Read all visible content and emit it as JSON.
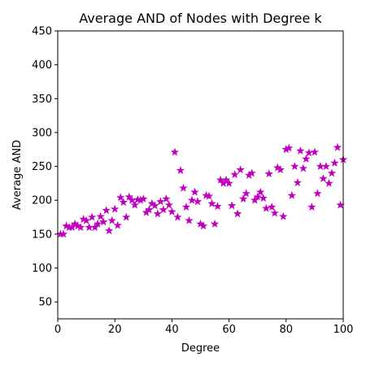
{
  "chart_data": {
    "type": "scatter",
    "title": "Average AND of Nodes with Degree k",
    "xlabel": "Degree",
    "ylabel": "Average AND",
    "xlim": [
      0,
      100
    ],
    "ylim": [
      25,
      450
    ],
    "xticks": [
      0,
      20,
      40,
      60,
      80,
      100
    ],
    "yticks": [
      50,
      100,
      150,
      200,
      250,
      300,
      350,
      400,
      450
    ],
    "grid": false,
    "marker": "star",
    "color": "#bf00bf",
    "series": [
      {
        "x": [
          1,
          2,
          3,
          4,
          5,
          6,
          7,
          8,
          9,
          10,
          11,
          12,
          13,
          14,
          15,
          16,
          17,
          18,
          19,
          20,
          21,
          22,
          23,
          24,
          25,
          26,
          27,
          28,
          29,
          30,
          31,
          32,
          33,
          34,
          35,
          36,
          37,
          38,
          39,
          40,
          41,
          42,
          43,
          44,
          45,
          46,
          47,
          48,
          49,
          50,
          51,
          52,
          53,
          54,
          55,
          56,
          57,
          58,
          59,
          60,
          61,
          62,
          63,
          64,
          65,
          66,
          67,
          68,
          69,
          70,
          71,
          72,
          73,
          74,
          75,
          76,
          77,
          78,
          79,
          80,
          81,
          82,
          83,
          84,
          85,
          86,
          87,
          88,
          89,
          90,
          91,
          92,
          93,
          94,
          95,
          96,
          97,
          98,
          99,
          100
        ],
        "y": [
          150,
          150,
          162,
          160,
          160,
          165,
          162,
          160,
          172,
          170,
          160,
          175,
          160,
          165,
          176,
          168,
          185,
          155,
          170,
          187,
          163,
          204,
          197,
          175,
          205,
          200,
          193,
          201,
          200,
          202,
          182,
          186,
          195,
          192,
          180,
          198,
          186,
          202,
          193,
          183,
          271,
          175,
          244,
          218,
          190,
          170,
          200,
          212,
          198,
          165,
          162,
          207,
          206,
          195,
          165,
          191,
          230,
          225,
          230,
          225,
          192,
          238,
          180,
          245,
          202,
          210,
          237,
          240,
          200,
          205,
          212,
          203,
          188,
          239,
          190,
          181,
          248,
          245,
          176,
          275,
          277,
          207,
          250,
          226,
          273,
          247,
          261,
          270,
          190,
          271,
          210,
          250,
          232,
          250,
          225,
          240,
          255,
          278,
          193,
          260
        ]
      }
    ]
  }
}
